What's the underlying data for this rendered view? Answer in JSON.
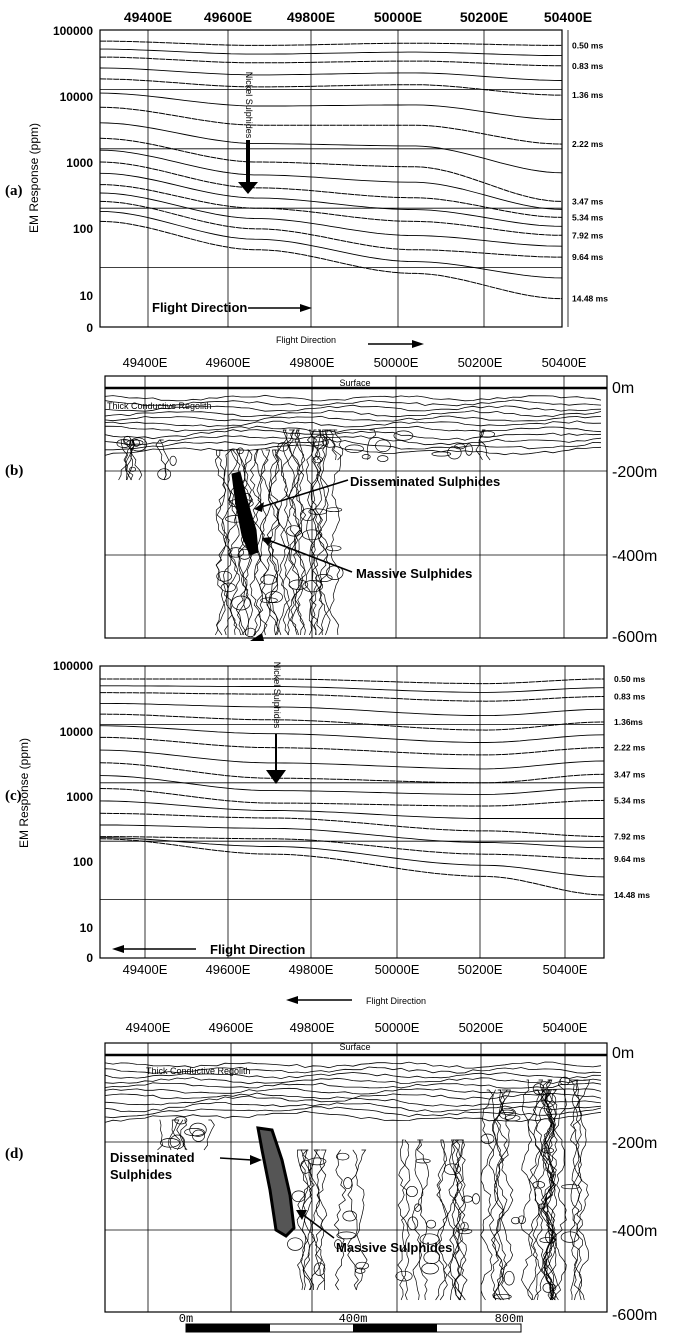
{
  "panel_labels": [
    "(a)",
    "(b)",
    "(c)",
    "(d)"
  ],
  "eastings_a": [
    "49400E",
    "49600E",
    "49800E",
    "50000E",
    "50200E",
    "50400E"
  ],
  "eastings_b": [
    "49400E",
    "49600E",
    "49800E",
    "50000E",
    "50200E",
    "50400E"
  ],
  "eastings_c": [
    "49400E",
    "49600E",
    "49800E",
    "50000E",
    "50200E",
    "50400E"
  ],
  "eastings_d": [
    "49400E",
    "49600E",
    "49800E",
    "50000E",
    "50200E",
    "50400E"
  ],
  "y_axis_label": "EM Response (ppm)",
  "y_ticks": [
    "100000",
    "10000",
    "1000",
    "100",
    "10",
    "0"
  ],
  "ms_labels_a": [
    "0.50 ms",
    "0.83 ms",
    "1.36 ms",
    "2.22 ms",
    "3.47 ms",
    "5.34 ms",
    "7.92 ms",
    "9.64 ms",
    "14.48 ms"
  ],
  "ms_labels_c": [
    "0.50 ms",
    "0.83 ms",
    "1.36ms",
    "2.22 ms",
    "3.47  ms",
    "5.34 ms",
    "7.92 ms",
    "9.64 ms",
    "14.48 ms"
  ],
  "depth_labels": [
    "0m",
    "-200m",
    "-400m",
    "-600m"
  ],
  "annotations": {
    "nickel_sulphides": "Nickel Sulphides",
    "flight_direction": "Flight Direction",
    "surface": "Surface",
    "regolith": "Thick Conductive Regolith",
    "disseminated": "Disseminated Sulphides",
    "disseminated_1": "Disseminated",
    "disseminated_2": "Sulphides",
    "massive": "Massive Sulphides"
  },
  "scale_bar": {
    "labels": [
      "0m",
      "400m",
      "800m"
    ]
  },
  "chart_data": [
    {
      "type": "line",
      "panel": "(a)",
      "title": "",
      "xlabel": "",
      "ylabel": "EM Response (ppm)",
      "x_ticks": [
        "49400E",
        "49600E",
        "49800E",
        "50000E",
        "50200E",
        "50400E"
      ],
      "y_scale": "log",
      "ylim": [
        1,
        100000
      ],
      "series": [
        {
          "name": "0.50 ms",
          "x": [
            49300,
            49700,
            50100,
            50480
          ],
          "y": [
            65000,
            55000,
            60000,
            55000
          ]
        },
        {
          "name": "0.83 ms",
          "x": [
            49300,
            49700,
            50100,
            50480
          ],
          "y": [
            35000,
            28000,
            30000,
            25000
          ]
        },
        {
          "name": "1.36 ms",
          "x": [
            49300,
            49700,
            50100,
            50480
          ],
          "y": [
            15000,
            11000,
            12000,
            8000
          ]
        },
        {
          "name": "2.22 ms",
          "x": [
            49300,
            49700,
            50100,
            50480
          ],
          "y": [
            5000,
            2500,
            2500,
            1200
          ]
        },
        {
          "name": "3.47 ms",
          "x": [
            49300,
            49700,
            50100,
            50480
          ],
          "y": [
            1500,
            600,
            500,
            130
          ]
        },
        {
          "name": "5.34 ms",
          "x": [
            49300,
            49700,
            50100,
            50480
          ],
          "y": [
            600,
            220,
            150,
            70
          ]
        },
        {
          "name": "7.92 ms",
          "x": [
            49300,
            49700,
            50100,
            50480
          ],
          "y": [
            250,
            100,
            60,
            35
          ]
        },
        {
          "name": "9.64 ms",
          "x": [
            49300,
            49700,
            50100,
            50480
          ],
          "y": [
            130,
            45,
            20,
            15
          ]
        },
        {
          "name": "14.48 ms",
          "x": [
            49300,
            49700,
            50100,
            50480
          ],
          "y": [
            60,
            20,
            8,
            3
          ]
        }
      ]
    },
    {
      "type": "line",
      "panel": "(c)",
      "title": "",
      "xlabel": "",
      "ylabel": "EM Response (ppm)",
      "x_ticks": [
        "49400E",
        "49600E",
        "49800E",
        "50000E",
        "50200E",
        "50400E"
      ],
      "y_scale": "log",
      "ylim": [
        1,
        100000
      ],
      "series": [
        {
          "name": "0.50 ms",
          "x": [
            49300,
            49700,
            50200,
            50480
          ],
          "y": [
            60000,
            60000,
            50000,
            60000
          ]
        },
        {
          "name": "0.83 ms",
          "x": [
            49300,
            49700,
            50200,
            50480
          ],
          "y": [
            35000,
            33000,
            25000,
            30000
          ]
        },
        {
          "name": "1.36ms",
          "x": [
            49300,
            49700,
            50200,
            50480
          ],
          "y": [
            15000,
            12000,
            8000,
            11000
          ]
        },
        {
          "name": "2.22 ms",
          "x": [
            49300,
            49700,
            50200,
            50480
          ],
          "y": [
            6000,
            4000,
            3000,
            4000
          ]
        },
        {
          "name": "3.47  ms",
          "x": [
            49300,
            49700,
            50200,
            50480
          ],
          "y": [
            2200,
            1200,
            1000,
            1400
          ]
        },
        {
          "name": "5.34 ms",
          "x": [
            49300,
            49700,
            50200,
            50480
          ],
          "y": [
            800,
            450,
            400,
            500
          ]
        },
        {
          "name": "7.92 ms",
          "x": [
            49300,
            49700,
            50200,
            50480
          ],
          "y": [
            300,
            250,
            150,
            120
          ]
        },
        {
          "name": "9.64 ms",
          "x": [
            49300,
            49700,
            50200,
            50480
          ],
          "y": [
            120,
            110,
            60,
            50
          ]
        },
        {
          "name": "14.48 ms",
          "x": [
            49300,
            49700,
            50200,
            50480
          ],
          "y": [
            110,
            60,
            25,
            12
          ]
        }
      ]
    }
  ]
}
